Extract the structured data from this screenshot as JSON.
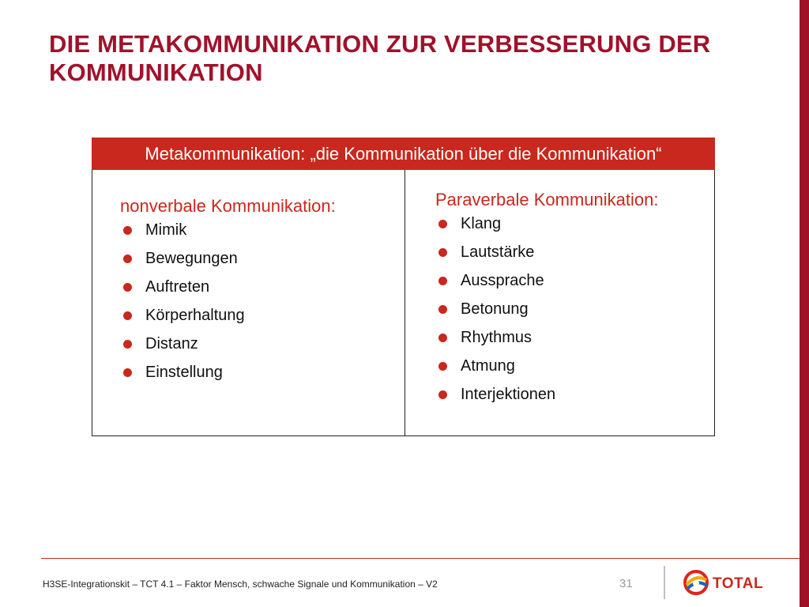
{
  "slide": {
    "title": "Die Metakommunikation zur Verbesserung der Kommunikation"
  },
  "table": {
    "header": "Metakommunikation: „die Kommunikation über die Kommunikation“",
    "left": {
      "heading": "nonverbale Kommunikation:",
      "items": [
        "Mimik",
        "Bewegungen",
        "Auftreten",
        "Körperhaltung",
        "Distanz",
        "Einstellung"
      ]
    },
    "right": {
      "heading": "Paraverbale Kommunikation:",
      "items": [
        "Klang",
        "Lautstärke",
        "Aussprache",
        "Betonung",
        "Rhythmus",
        "Atmung",
        "Interjektionen"
      ]
    }
  },
  "footer": {
    "text": "H3SE-Integrationskit – TCT 4.1 – Faktor Mensch, schwache Signale und Kommunikation – V2",
    "page_number": "31",
    "logo_text": "TOTAL"
  },
  "colors": {
    "accent": "#c8281d",
    "title": "#a0122b"
  }
}
